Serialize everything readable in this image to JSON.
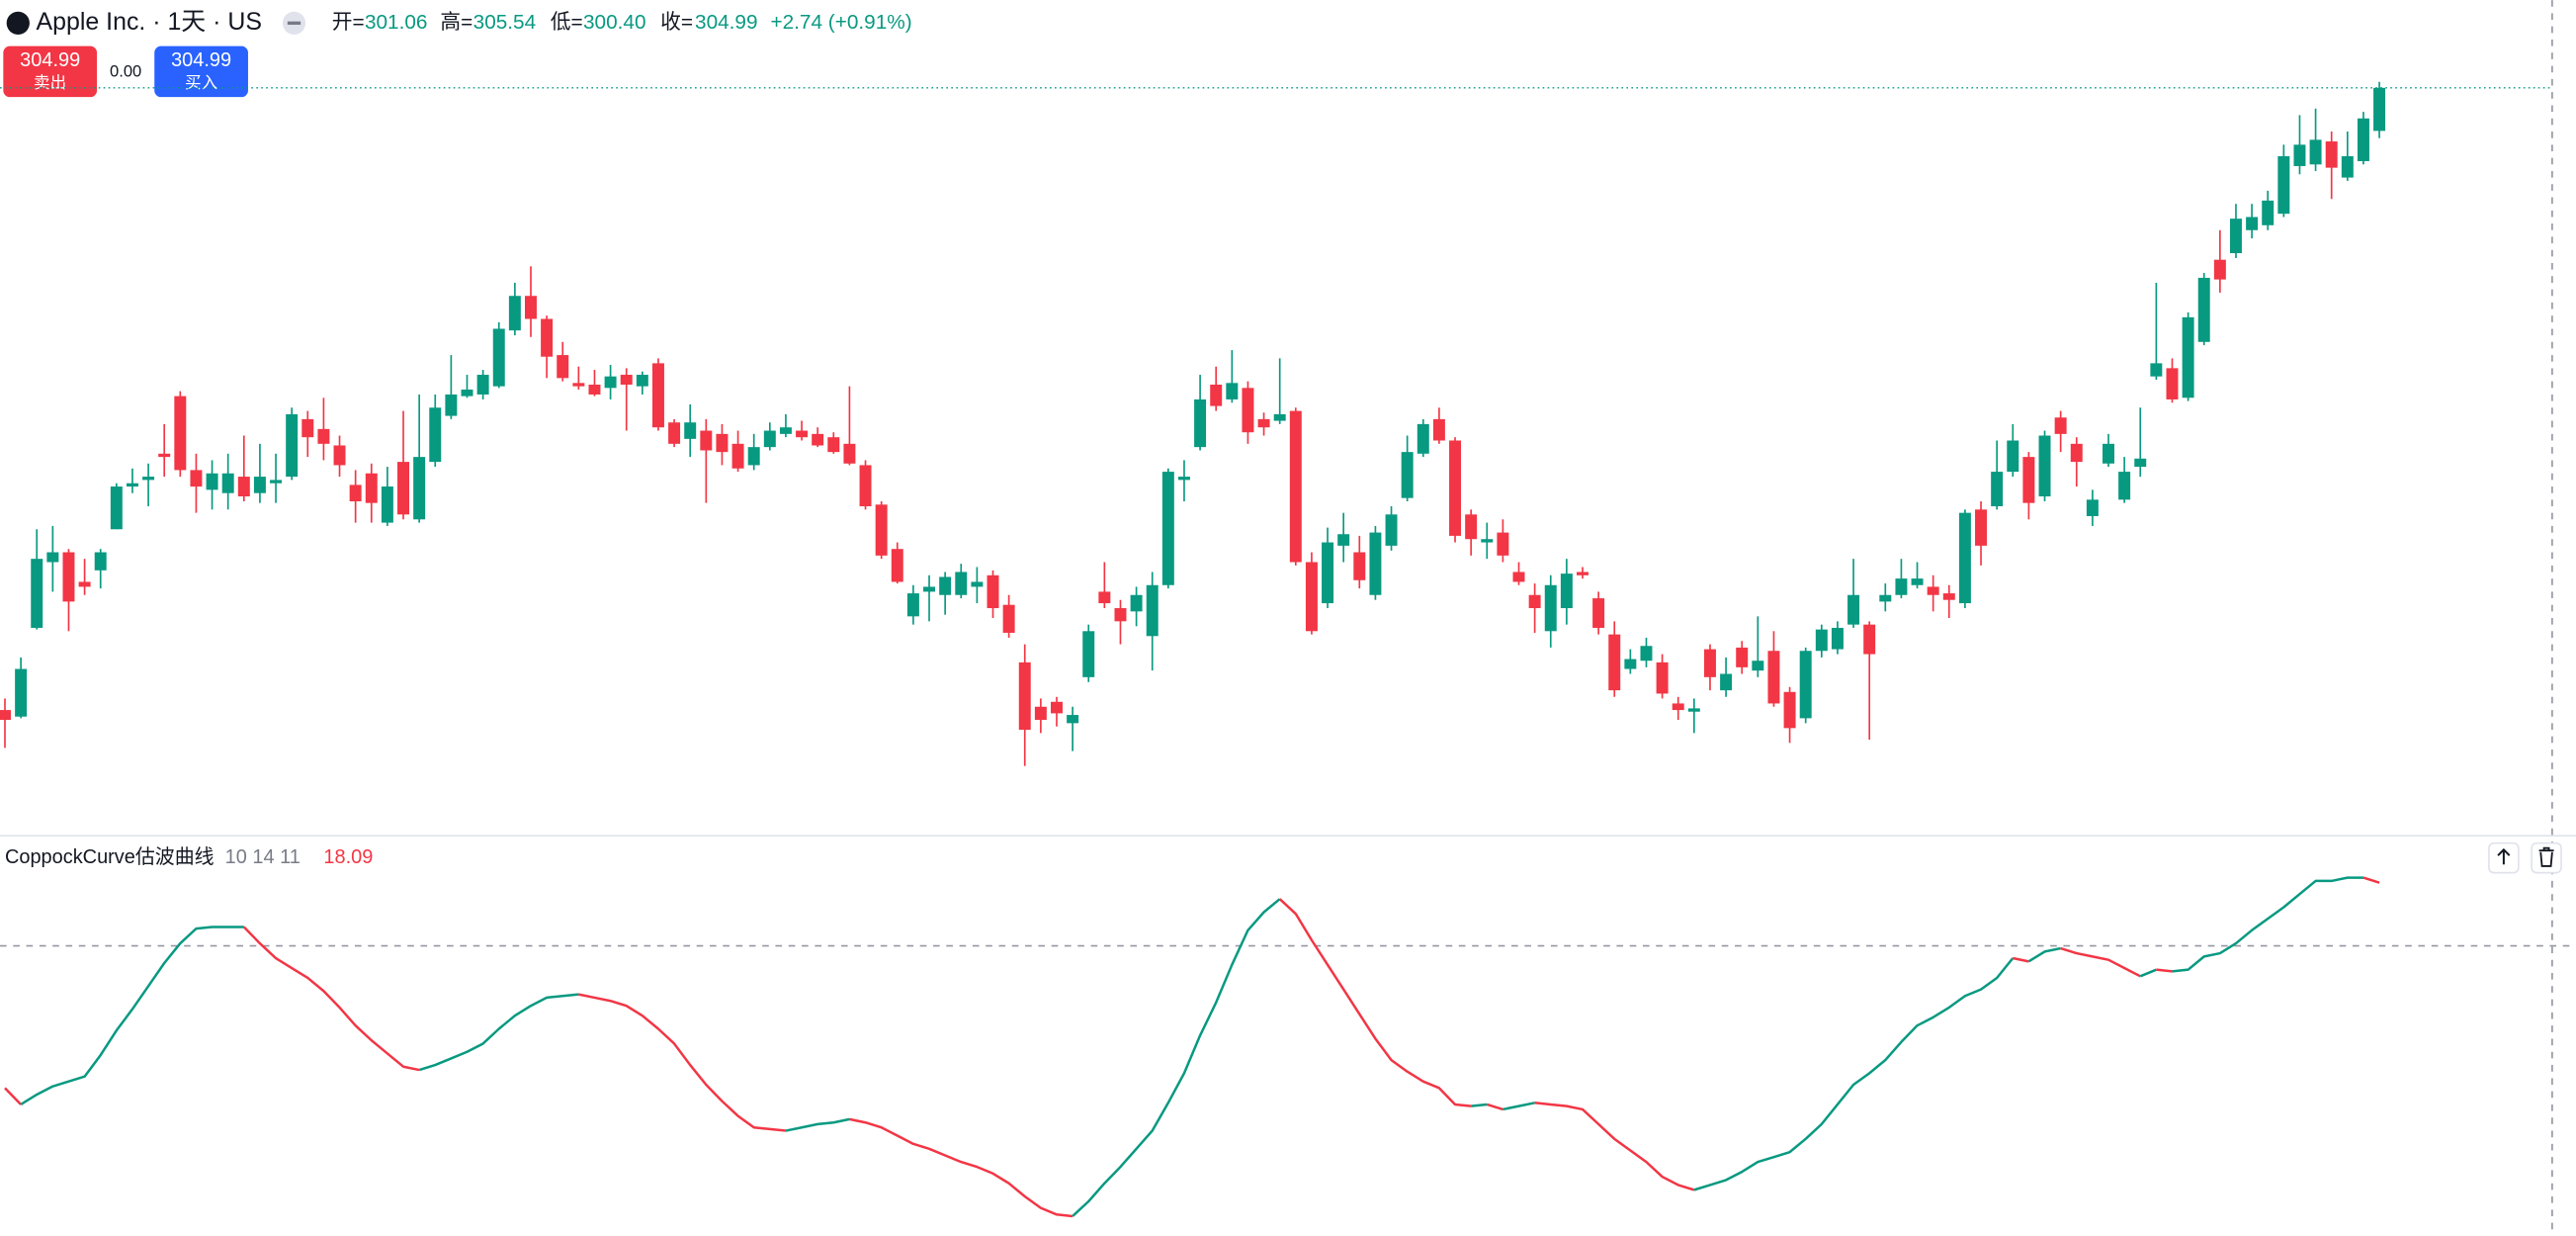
{
  "header": {
    "title": "Apple Inc. · 1天 · US",
    "open_label": "开=",
    "open": "301.06",
    "high_label": "高=",
    "high": "305.54",
    "low_label": "低=",
    "low": "300.40",
    "close_label": "收=",
    "close": "304.99",
    "change": "+2.74 (+0.91%)"
  },
  "trade": {
    "sell_price": "304.99",
    "sell": "卖出",
    "spread": "0.00",
    "buy_price": "304.99",
    "buy": "买入"
  },
  "chart_data": {
    "type": "candlestick",
    "up_color": "#089981",
    "down_color": "#f23645",
    "ylim": [
      236.8,
      313
    ],
    "candles": [
      [
        248.2,
        249.25,
        244.75,
        247.3
      ],
      [
        247.6,
        253,
        247.45,
        251.95
      ],
      [
        255.7,
        264.7,
        255.55,
        262
      ],
      [
        261.7,
        265,
        259,
        262.6
      ],
      [
        262.6,
        262.9,
        255.4,
        258.1
      ],
      [
        259.9,
        262,
        258.7,
        259.45
      ],
      [
        260.95,
        262.9,
        259.3,
        262.6
      ],
      [
        264.7,
        268.9,
        264.7,
        268.6
      ],
      [
        268.6,
        270.25,
        268,
        268.9
      ],
      [
        269.2,
        270.7,
        266.8,
        269.5
      ],
      [
        271.6,
        274.3,
        269.5,
        271.3
      ],
      [
        276.85,
        277.3,
        269.5,
        270.1
      ],
      [
        270.1,
        271.6,
        266.2,
        268.6
      ],
      [
        268.3,
        271,
        266.5,
        269.8
      ],
      [
        268,
        271.6,
        266.5,
        269.8
      ],
      [
        269.5,
        273.25,
        267.25,
        267.7
      ],
      [
        268,
        272.5,
        267.1,
        269.5
      ],
      [
        268.9,
        271.6,
        267.1,
        269.2
      ],
      [
        269.5,
        275.8,
        269.2,
        275.2
      ],
      [
        274.75,
        275.5,
        271.3,
        273.1
      ],
      [
        273.85,
        276.7,
        271,
        272.5
      ],
      [
        272.35,
        273.25,
        269.5,
        270.55
      ],
      [
        268.75,
        270.1,
        265.3,
        267.25
      ],
      [
        269.8,
        270.7,
        265.3,
        267.1
      ],
      [
        265.3,
        270.4,
        265,
        268.6
      ],
      [
        270.85,
        275.5,
        265.6,
        266.05
      ],
      [
        265.6,
        277,
        265.3,
        271.3
      ],
      [
        270.85,
        277,
        270.4,
        275.8
      ],
      [
        275.05,
        280.6,
        274.75,
        277
      ],
      [
        276.85,
        278.8,
        276.7,
        277.45
      ],
      [
        277,
        279.25,
        276.55,
        278.8
      ],
      [
        277.75,
        283.6,
        277.6,
        283
      ],
      [
        282.85,
        287.2,
        282.4,
        286
      ],
      [
        286,
        288.7,
        282.25,
        283.9
      ],
      [
        283.9,
        284.2,
        278.5,
        280.45
      ],
      [
        280.6,
        281.8,
        278.2,
        278.5
      ],
      [
        278.05,
        279.55,
        277.45,
        277.75
      ],
      [
        277.9,
        279.25,
        276.85,
        277
      ],
      [
        277.6,
        279.7,
        276.55,
        278.65
      ],
      [
        278.8,
        279.4,
        273.7,
        277.9
      ],
      [
        277.75,
        279.1,
        277,
        278.8
      ],
      [
        279.85,
        280.3,
        273.7,
        274
      ],
      [
        274.45,
        274.75,
        272.2,
        272.5
      ],
      [
        272.95,
        276.1,
        271.3,
        274.45
      ],
      [
        273.7,
        274.75,
        267.1,
        271.9
      ],
      [
        273.4,
        274.3,
        270.55,
        271.75
      ],
      [
        272.5,
        273.7,
        269.95,
        270.25
      ],
      [
        270.55,
        273.4,
        270.1,
        272.2
      ],
      [
        272.2,
        274.45,
        271.9,
        273.7
      ],
      [
        273.4,
        275.2,
        273.1,
        274
      ],
      [
        273.7,
        274.6,
        272.8,
        273.1
      ],
      [
        273.4,
        274,
        272.2,
        272.35
      ],
      [
        273.1,
        273.55,
        271.6,
        271.75
      ],
      [
        272.5,
        277.75,
        270.55,
        270.7
      ],
      [
        270.55,
        271,
        266.5,
        266.8
      ],
      [
        266.95,
        267.25,
        262,
        262.3
      ],
      [
        262.9,
        263.5,
        259.75,
        259.9
      ],
      [
        256.75,
        259.6,
        256,
        258.85
      ],
      [
        259,
        260.5,
        256.3,
        259.45
      ],
      [
        258.7,
        260.8,
        256.9,
        260.35
      ],
      [
        258.7,
        261.55,
        258.4,
        260.8
      ],
      [
        259.45,
        261.25,
        257.95,
        259.9
      ],
      [
        260.5,
        260.95,
        256.6,
        257.5
      ],
      [
        257.8,
        258.7,
        254.8,
        255.25
      ],
      [
        252.55,
        254.2,
        243.1,
        246.4
      ],
      [
        248.5,
        249.25,
        246.1,
        247.3
      ],
      [
        248.95,
        249.4,
        246.7,
        247.9
      ],
      [
        247,
        248.5,
        244.45,
        247.75
      ],
      [
        251.2,
        256,
        250.75,
        255.4
      ],
      [
        259,
        261.7,
        257.5,
        257.95
      ],
      [
        257.5,
        258.25,
        254.2,
        256.3
      ],
      [
        257.2,
        259.45,
        255.85,
        258.7
      ],
      [
        254.95,
        260.8,
        251.8,
        259.6
      ],
      [
        259.6,
        270.25,
        259.3,
        269.95
      ],
      [
        269.2,
        271,
        267.25,
        269.5
      ],
      [
        272.2,
        278.8,
        271.9,
        276.55
      ],
      [
        277.9,
        279.55,
        275.5,
        275.95
      ],
      [
        276.55,
        281.05,
        276.25,
        278.05
      ],
      [
        277.6,
        278.2,
        272.5,
        273.55
      ],
      [
        274.75,
        275.35,
        273.25,
        274
      ],
      [
        274.6,
        280.3,
        274.3,
        275.2
      ],
      [
        275.5,
        275.8,
        261.4,
        261.7
      ],
      [
        261.7,
        262.6,
        255.1,
        255.4
      ],
      [
        257.95,
        264.85,
        257.5,
        263.5
      ],
      [
        263.2,
        266.2,
        261.7,
        264.25
      ],
      [
        262.6,
        264.1,
        259.3,
        260.05
      ],
      [
        258.7,
        265,
        258.25,
        264.4
      ],
      [
        263.2,
        266.8,
        262.75,
        266.05
      ],
      [
        267.55,
        273.25,
        267.25,
        271.75
      ],
      [
        271.6,
        274.75,
        271.3,
        274.3
      ],
      [
        274.75,
        275.8,
        272.5,
        272.8
      ],
      [
        272.8,
        273.1,
        263.5,
        264.1
      ],
      [
        266.05,
        266.5,
        262.3,
        263.8
      ],
      [
        263.5,
        265.3,
        262,
        263.8
      ],
      [
        264.4,
        265.6,
        261.7,
        262.3
      ],
      [
        260.8,
        261.7,
        259.6,
        259.9
      ],
      [
        258.7,
        259.75,
        255.25,
        257.5
      ],
      [
        255.4,
        260.5,
        253.9,
        259.6
      ],
      [
        257.5,
        262,
        256,
        260.65
      ],
      [
        260.8,
        261.25,
        260.2,
        260.5
      ],
      [
        258.4,
        259,
        255.1,
        255.7
      ],
      [
        255.1,
        256.3,
        249.4,
        250
      ],
      [
        251.95,
        253.75,
        251.5,
        252.85
      ],
      [
        252.7,
        254.8,
        252.1,
        254.05
      ],
      [
        252.55,
        253.3,
        249.25,
        249.7
      ],
      [
        248.8,
        249.4,
        247.3,
        248.2
      ],
      [
        248.05,
        249.25,
        246.1,
        248.35
      ],
      [
        253.75,
        254.2,
        250,
        251.2
      ],
      [
        250,
        253,
        249.4,
        251.5
      ],
      [
        253.9,
        254.5,
        251.5,
        252.1
      ],
      [
        251.8,
        256.75,
        251.2,
        252.7
      ],
      [
        253.6,
        255.4,
        248.5,
        248.8
      ],
      [
        249.85,
        250.3,
        245.2,
        246.55
      ],
      [
        247.45,
        253.9,
        247,
        253.6
      ],
      [
        253.6,
        256,
        253,
        255.55
      ],
      [
        253.75,
        256.3,
        253.3,
        255.7
      ],
      [
        256,
        262,
        255.7,
        258.7
      ],
      [
        256,
        256.3,
        245.5,
        253.3
      ],
      [
        258.1,
        259.75,
        257.2,
        258.7
      ],
      [
        258.7,
        262,
        258.4,
        260.2
      ],
      [
        259.6,
        261.7,
        259.3,
        260.2
      ],
      [
        259.45,
        260.5,
        257.2,
        258.7
      ],
      [
        258.85,
        259.6,
        256.6,
        258.25
      ],
      [
        257.95,
        266.5,
        257.5,
        266.2
      ],
      [
        266.5,
        267.25,
        261.4,
        263.2
      ],
      [
        266.8,
        272.8,
        266.5,
        269.95
      ],
      [
        269.95,
        274.3,
        269.5,
        272.8
      ],
      [
        271.3,
        271.75,
        265.6,
        267.1
      ],
      [
        267.7,
        273.7,
        267.25,
        273.25
      ],
      [
        274.9,
        275.5,
        271.75,
        273.4
      ],
      [
        272.5,
        273.1,
        268.6,
        270.85
      ],
      [
        265.9,
        268.3,
        265,
        267.4
      ],
      [
        270.7,
        273.4,
        270.4,
        272.5
      ],
      [
        267.4,
        271.3,
        267.1,
        269.95
      ],
      [
        270.4,
        275.8,
        269.5,
        271.15
      ],
      [
        278.65,
        287.2,
        278.35,
        279.85
      ],
      [
        279.4,
        280.3,
        276.25,
        276.55
      ],
      [
        276.7,
        284.5,
        276.4,
        284.05
      ],
      [
        281.8,
        288.1,
        281.5,
        287.65
      ],
      [
        289.3,
        292,
        286.3,
        287.5
      ],
      [
        289.9,
        294.4,
        289.45,
        293.05
      ],
      [
        292,
        294.4,
        291.25,
        293.2
      ],
      [
        292.45,
        295.6,
        292,
        294.7
      ],
      [
        293.5,
        299.8,
        293.2,
        298.75
      ],
      [
        297.85,
        302.5,
        297.1,
        299.8
      ],
      [
        298,
        303.1,
        297.4,
        300.25
      ],
      [
        300.1,
        301,
        294.85,
        297.7
      ],
      [
        296.8,
        301,
        296.5,
        298.75
      ],
      [
        298.3,
        302.8,
        298,
        302.2
      ],
      [
        301.06,
        305.54,
        300.4,
        304.99
      ]
    ],
    "indicator": {
      "type": "line",
      "name": "CoppockCurve估波曲线",
      "params": "10 14 11",
      "ylim": [
        -24.9,
        23.5
      ],
      "values": [
        -6.9,
        -8.9,
        -7.7,
        -6.7,
        -6.1,
        -5.5,
        -2.9,
        0.1,
        2.7,
        5.5,
        8.3,
        10.7,
        12.5,
        12.7,
        12.7,
        12.7,
        10.7,
        8.9,
        7.7,
        6.5,
        4.9,
        2.9,
        0.7,
        -1.1,
        -2.7,
        -4.3,
        -4.7,
        -4.1,
        -3.3,
        -2.5,
        -1.5,
        0.3,
        1.9,
        3.1,
        4.1,
        4.3,
        4.5,
        4.1,
        3.7,
        3.1,
        1.9,
        0.3,
        -1.5,
        -4.1,
        -6.5,
        -8.5,
        -10.3,
        -11.7,
        -11.9,
        -12.1,
        -11.7,
        -11.3,
        -11.1,
        -10.7,
        -11.1,
        -11.7,
        -12.7,
        -13.7,
        -14.3,
        -15.1,
        -15.9,
        -16.5,
        -17.3,
        -18.5,
        -20.1,
        -21.5,
        -22.3,
        -22.5,
        -20.7,
        -18.5,
        -16.5,
        -14.3,
        -12.1,
        -8.7,
        -5.1,
        -0.5,
        3.5,
        8.1,
        12.3,
        14.5,
        16.1,
        14.3,
        11.1,
        8.1,
        5.1,
        2.1,
        -0.9,
        -3.5,
        -4.9,
        -6.1,
        -6.9,
        -8.9,
        -9.1,
        -8.9,
        -9.5,
        -9.1,
        -8.7,
        -8.9,
        -9.1,
        -9.5,
        -11.3,
        -13.1,
        -14.5,
        -15.9,
        -17.7,
        -18.7,
        -19.3,
        -18.7,
        -18.1,
        -17.1,
        -15.9,
        -15.3,
        -14.7,
        -13.1,
        -11.3,
        -8.9,
        -6.5,
        -5.1,
        -3.5,
        -1.3,
        0.7,
        1.7,
        2.9,
        4.3,
        5.1,
        6.5,
        8.9,
        8.5,
        9.7,
        10.1,
        9.5,
        9.1,
        8.7,
        7.7,
        6.7,
        7.5,
        7.3,
        7.5,
        9.1,
        9.5,
        10.7,
        12.3,
        13.7,
        15.1,
        16.7,
        18.3,
        18.3,
        18.7,
        18.7,
        18.09
      ]
    }
  }
}
